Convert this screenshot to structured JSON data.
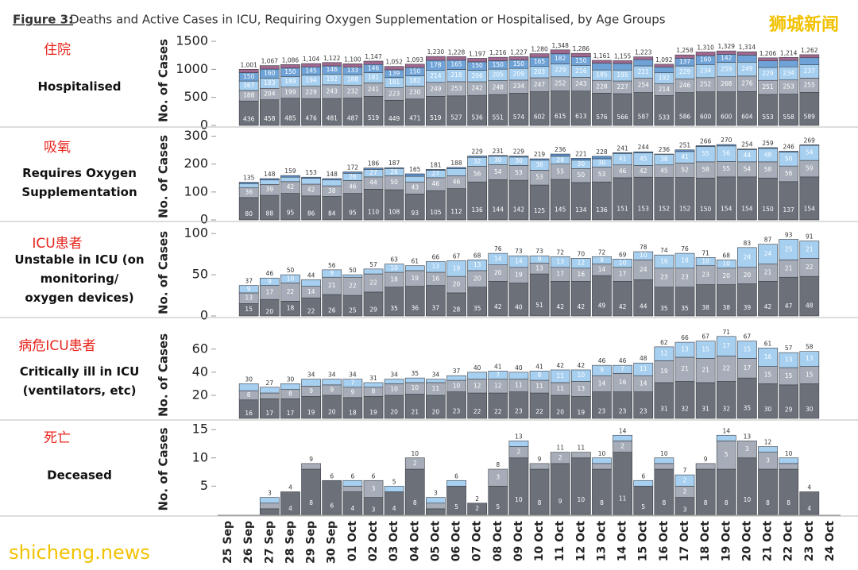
{
  "figure": {
    "label": "Figure 3:",
    "title": "Deaths and Active Cases in ICU, Requiring Oxygen Supplementation or Hospitalised, by Age Groups"
  },
  "watermarks": [
    "狮城新闻",
    "shicheng.news"
  ],
  "chart_data": [
    {
      "type": "bar",
      "stacked": true,
      "label_cn": "住院",
      "label": [
        "Hospitalised"
      ],
      "ylabel": "No. of Cases",
      "ylim": [
        0,
        1600
      ],
      "yticks": [
        0,
        500,
        1000,
        1500
      ],
      "series": [
        {
          "color": "#6b7079",
          "values": [
            null,
            436,
            458,
            485,
            476,
            481,
            487,
            519,
            449,
            471,
            519,
            527,
            536,
            551,
            574,
            602,
            615,
            613,
            576,
            566,
            587,
            533,
            586,
            600,
            600,
            604,
            553,
            558,
            589,
            null
          ]
        },
        {
          "color": "#a7adb8",
          "values": [
            null,
            188,
            204,
            199,
            229,
            243,
            232,
            241,
            223,
            230,
            249,
            253,
            242,
            248,
            234,
            247,
            252,
            243,
            228,
            227,
            254,
            214,
            246,
            252,
            268,
            276,
            251,
            253,
            255,
            null
          ]
        },
        {
          "color": "#a6cff0",
          "values": [
            null,
            167,
            183,
            189,
            194,
            192,
            188,
            181,
            181,
            182,
            214,
            218,
            206,
            205,
            209,
            203,
            229,
            216,
            185,
            195,
            221,
            192,
            229,
            234,
            259,
            249,
            229,
            234,
            237,
            null
          ]
        },
        {
          "color": "#6fa3d8",
          "values": [
            null,
            150,
            160,
            150,
            145,
            146,
            133,
            146,
            139,
            150,
            178,
            165,
            150,
            150,
            150,
            165,
            182,
            150,
            120,
            117,
            111,
            103,
            137,
            160,
            142,
            125,
            118,
            114,
            126,
            null
          ]
        },
        {
          "color": "#a0678f",
          "values": [
            null,
            60,
            62,
            63,
            60,
            60,
            60,
            60,
            60,
            60,
            70,
            65,
            63,
            62,
            60,
            63,
            70,
            64,
            52,
            50,
            50,
            50,
            60,
            64,
            60,
            60,
            55,
            55,
            55,
            null
          ]
        }
      ],
      "totals": [
        null,
        1001,
        1067,
        1086,
        1104,
        1122,
        1100,
        1147,
        1052,
        1093,
        1230,
        1228,
        1197,
        1216,
        1227,
        1280,
        1348,
        1286,
        1161,
        1155,
        1223,
        1092,
        1258,
        1310,
        1329,
        1314,
        1206,
        1214,
        1262,
        null
      ],
      "total_labels": [
        null,
        "1,001",
        "1,067",
        "1,086",
        "1,104",
        "1,122",
        "1,100",
        "1,147",
        "1,052",
        "1,093",
        "1,230",
        "1,228",
        "1,197",
        "1,216",
        "1,227",
        "1,280",
        "1,348",
        "1,286",
        "1,161",
        "1,155",
        "1,223",
        "1,092",
        "1,258",
        "1,310",
        "1,329",
        "1,314",
        "1,206",
        "1,214",
        "1,262",
        null
      ]
    },
    {
      "type": "bar",
      "stacked": true,
      "label_cn": "吸氧",
      "label": [
        "Requires Oxygen",
        "Supplementation"
      ],
      "ylabel": "No. of Cases",
      "ylim": [
        0,
        310
      ],
      "yticks": [
        0,
        100,
        200,
        300
      ],
      "series": [
        {
          "color": "#6b7079",
          "values": [
            null,
            80,
            88,
            95,
            86,
            84,
            95,
            110,
            108,
            93,
            105,
            112,
            136,
            144,
            142,
            125,
            145,
            134,
            136,
            151,
            153,
            152,
            152,
            150,
            154,
            154,
            150,
            137,
            154,
            null
          ]
        },
        {
          "color": "#a7adb8",
          "values": [
            null,
            36,
            39,
            42,
            42,
            38,
            46,
            44,
            50,
            43,
            46,
            46,
            56,
            54,
            53,
            53,
            55,
            50,
            53,
            46,
            42,
            45,
            52,
            58,
            55,
            54,
            58,
            56,
            59,
            null
          ]
        },
        {
          "color": "#a6cff0",
          "values": [
            null,
            14,
            16,
            16,
            21,
            21,
            26,
            27,
            26,
            20,
            27,
            25,
            32,
            30,
            30,
            36,
            28,
            30,
            30,
            41,
            45,
            38,
            41,
            55,
            56,
            44,
            48,
            50,
            54,
            null
          ]
        },
        {
          "color": "#5b8fc9",
          "values": [
            null,
            5,
            5,
            6,
            4,
            5,
            5,
            5,
            3,
            9,
            3,
            5,
            5,
            3,
            4,
            5,
            8,
            7,
            9,
            3,
            4,
            1,
            6,
            3,
            5,
            2,
            3,
            3,
            2,
            null
          ]
        }
      ],
      "totals": [
        null,
        135,
        148,
        159,
        153,
        148,
        172,
        186,
        187,
        165,
        181,
        188,
        229,
        231,
        229,
        219,
        236,
        221,
        228,
        241,
        244,
        236,
        251,
        266,
        270,
        254,
        259,
        246,
        269,
        null
      ]
    },
    {
      "type": "bar",
      "stacked": true,
      "label_cn": "ICU患者",
      "label": [
        "Unstable in ICU (on",
        "monitoring/",
        "oxygen devices)"
      ],
      "ylabel": "No. of Cases",
      "ylim": [
        0,
        105
      ],
      "yticks": [
        0,
        50,
        100
      ],
      "series": [
        {
          "color": "#6b7079",
          "values": [
            null,
            15,
            20,
            18,
            22,
            26,
            25,
            29,
            35,
            36,
            37,
            28,
            35,
            42,
            40,
            51,
            42,
            42,
            49,
            42,
            44,
            35,
            35,
            38,
            38,
            39,
            42,
            47,
            48,
            null
          ]
        },
        {
          "color": "#a7adb8",
          "values": [
            null,
            13,
            17,
            22,
            14,
            21,
            22,
            22,
            18,
            19,
            16,
            20,
            20,
            20,
            19,
            13,
            17,
            16,
            14,
            17,
            24,
            23,
            23,
            23,
            20,
            20,
            21,
            21,
            22,
            null
          ]
        },
        {
          "color": "#a6cff0",
          "values": [
            null,
            9,
            9,
            10,
            8,
            9,
            3,
            6,
            10,
            6,
            13,
            19,
            13,
            14,
            14,
            9,
            13,
            12,
            9,
            10,
            10,
            16,
            18,
            10,
            10,
            24,
            24,
            25,
            21,
            null
          ]
        }
      ],
      "totals": [
        null,
        37,
        46,
        50,
        44,
        56,
        50,
        57,
        63,
        61,
        66,
        67,
        68,
        76,
        73,
        73,
        72,
        70,
        72,
        69,
        78,
        74,
        76,
        71,
        68,
        83,
        87,
        93,
        91,
        null
      ]
    },
    {
      "type": "bar",
      "stacked": true,
      "label_cn": "病危ICU患者",
      "label": [
        "Critically ill in ICU",
        "(ventilators, etc)"
      ],
      "ylabel": "No. of Cases",
      "ylim": [
        0,
        75
      ],
      "yticks": [
        20,
        40,
        60
      ],
      "series": [
        {
          "color": "#6b7079",
          "values": [
            null,
            16,
            17,
            17,
            19,
            20,
            18,
            19,
            20,
            21,
            20,
            23,
            22,
            22,
            23,
            22,
            20,
            19,
            23,
            23,
            23,
            31,
            32,
            31,
            32,
            35,
            30,
            29,
            30,
            null
          ]
        },
        {
          "color": "#a7adb8",
          "values": [
            null,
            8,
            5,
            8,
            9,
            9,
            9,
            8,
            10,
            10,
            11,
            10,
            12,
            12,
            11,
            11,
            11,
            13,
            14,
            16,
            14,
            19,
            21,
            21,
            22,
            17,
            15,
            15,
            15,
            null
          ]
        },
        {
          "color": "#a6cff0",
          "values": [
            null,
            6,
            5,
            5,
            6,
            5,
            7,
            4,
            4,
            4,
            3,
            4,
            6,
            7,
            6,
            8,
            11,
            10,
            9,
            7,
            11,
            12,
            13,
            15,
            17,
            15,
            16,
            13,
            13,
            null
          ]
        }
      ],
      "totals": [
        null,
        30,
        27,
        30,
        34,
        34,
        34,
        31,
        34,
        35,
        34,
        37,
        40,
        41,
        40,
        41,
        42,
        42,
        46,
        46,
        48,
        62,
        66,
        67,
        71,
        67,
        61,
        57,
        58,
        null
      ]
    },
    {
      "type": "bar",
      "stacked": true,
      "label_cn": "死亡",
      "label": [
        "Deceased"
      ],
      "ylabel": "No. of Cases",
      "ylim": [
        0,
        16
      ],
      "yticks": [
        5,
        10,
        15
      ],
      "categories": [
        "25 Sep",
        "26 Sep",
        "27 Sep",
        "28 Sep",
        "29 Sep",
        "30 Sep",
        "01 Oct",
        "02 Oct",
        "03 Oct",
        "04 Oct",
        "05 Oct",
        "06 Oct",
        "07 Oct",
        "08 Oct",
        "09 Oct",
        "10 Oct",
        "11 Oct",
        "12 Oct",
        "13 Oct",
        "14 Oct",
        "15 Oct",
        "16 Oct",
        "17 Oct",
        "18 Oct",
        "19 Oct",
        "20 Oct",
        "21 Oct",
        "22 Oct",
        "23 Oct",
        "24 Oct"
      ],
      "series": [
        {
          "color": "#6b7079",
          "values": [
            null,
            null,
            1,
            4,
            8,
            6,
            4,
            3,
            4,
            8,
            1,
            5,
            2,
            5,
            10,
            8,
            9,
            10,
            8,
            11,
            5,
            8,
            3,
            8,
            8,
            10,
            8,
            8,
            4,
            null
          ]
        },
        {
          "color": "#a7adb8",
          "values": [
            null,
            null,
            1,
            0,
            1,
            0,
            1,
            3,
            0,
            2,
            1,
            0,
            0,
            3,
            2,
            1,
            2,
            1,
            1,
            2,
            0,
            1,
            2,
            1,
            5,
            3,
            3,
            1,
            0,
            null
          ]
        },
        {
          "color": "#a6cff0",
          "values": [
            null,
            null,
            1,
            0,
            0,
            0,
            1,
            0,
            1,
            0,
            1,
            1,
            0,
            0,
            1,
            0,
            0,
            0,
            1,
            1,
            1,
            1,
            2,
            0,
            1,
            0,
            1,
            1,
            0,
            null
          ]
        }
      ],
      "totals": [
        null,
        null,
        3,
        4,
        9,
        6,
        6,
        6,
        5,
        10,
        3,
        6,
        2,
        8,
        13,
        9,
        11,
        11,
        10,
        14,
        6,
        10,
        7,
        9,
        14,
        13,
        12,
        10,
        4,
        null
      ]
    }
  ]
}
